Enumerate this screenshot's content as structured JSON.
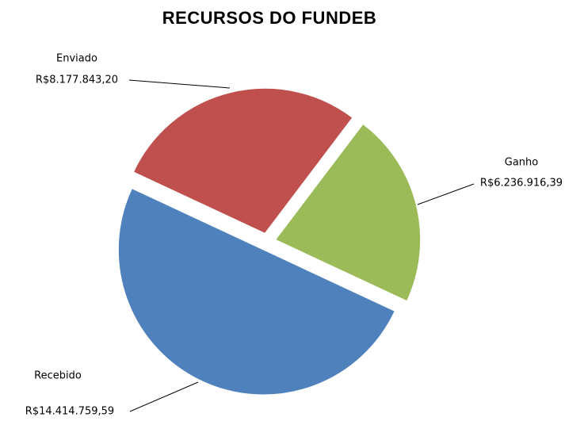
{
  "chart_data": {
    "type": "pie",
    "title": "RECURSOS  DO FUNDEB",
    "categories": [
      "Enviado",
      "Ganho",
      "Recebido"
    ],
    "values": [
      8177843.2,
      6236916.39,
      14414759.59
    ],
    "value_labels": [
      "R$8.177.843,20",
      "R$6.236.916,39",
      "R$14.414.759,59"
    ],
    "colors": [
      "#c0504d",
      "#9bbb59",
      "#4f81bd"
    ]
  }
}
